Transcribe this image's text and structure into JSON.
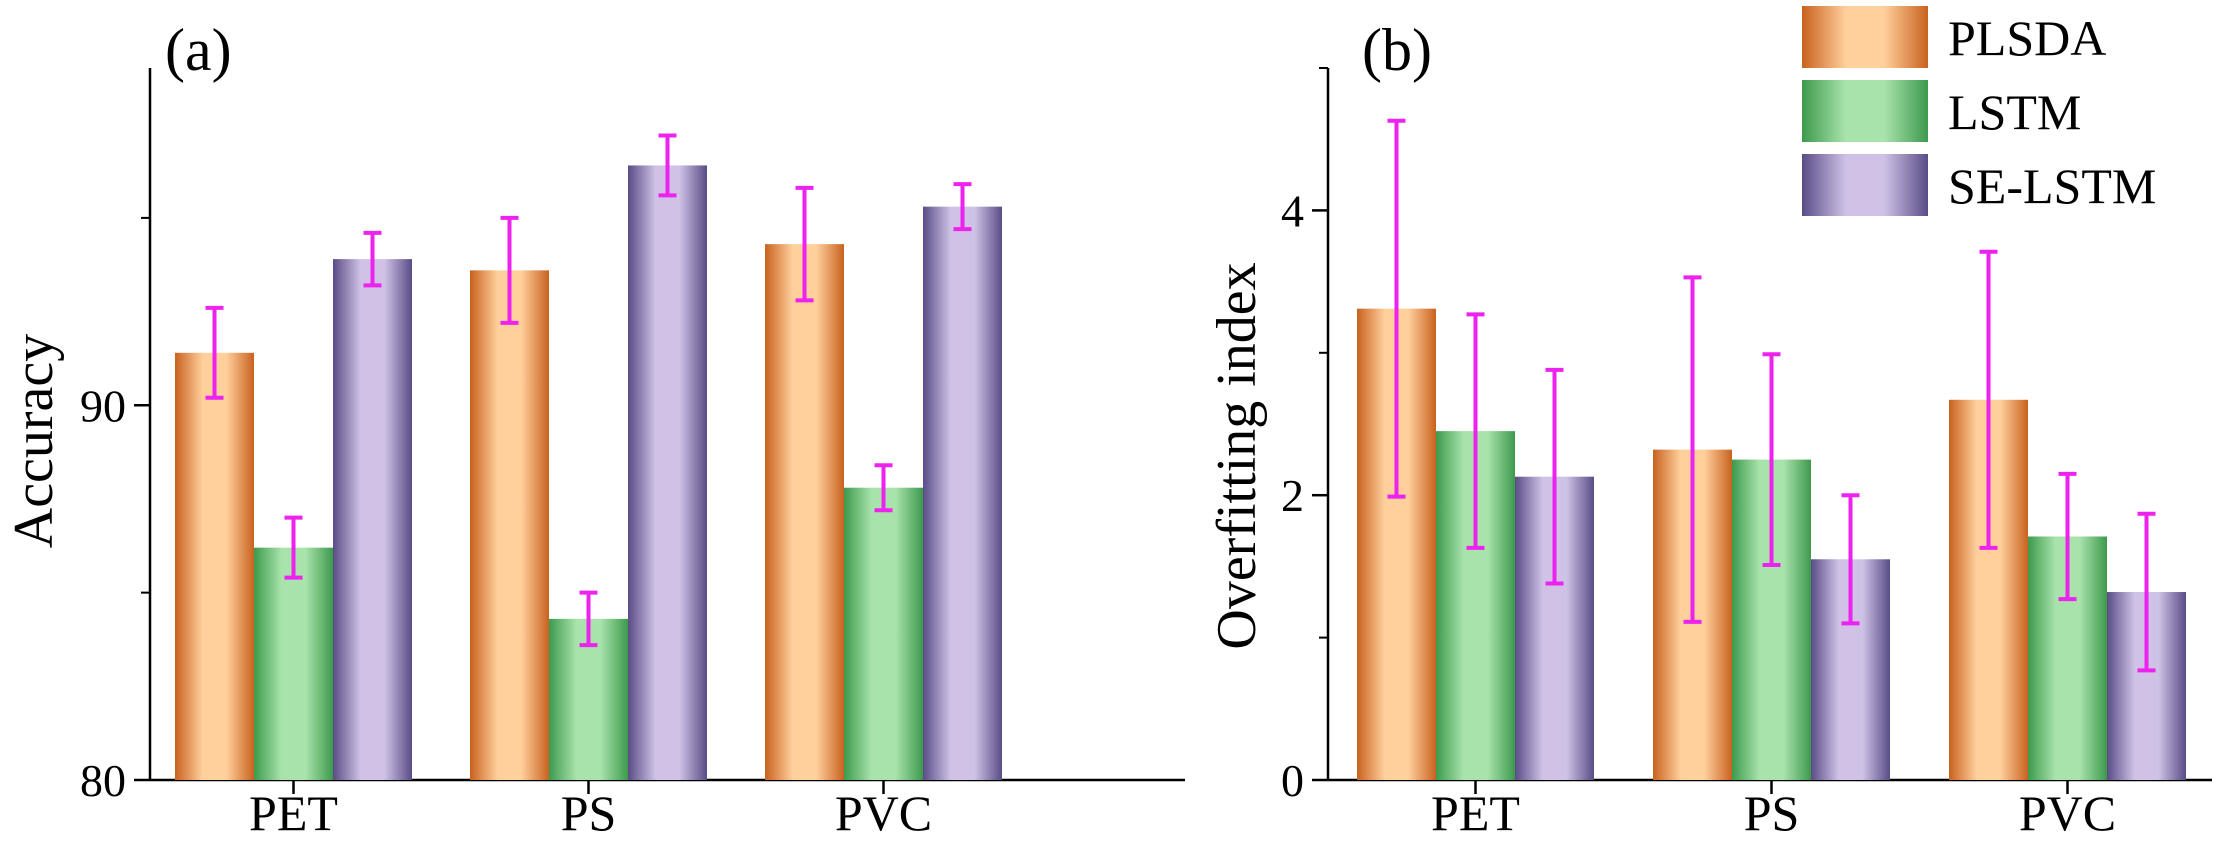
{
  "colors": {
    "PLSDA": [
      "#c8621f",
      "#ffcf9c"
    ],
    "LSTM": [
      "#3d9a4c",
      "#a9e3ac"
    ],
    "SE-LSTM": [
      "#5a4c86",
      "#cfc2e6"
    ],
    "error_bar": "#ee22ee",
    "axis": "#000000"
  },
  "legend": {
    "position": "top-right",
    "entries": [
      "PLSDA",
      "LSTM",
      "SE-LSTM"
    ]
  },
  "chart_data": [
    {
      "type": "bar",
      "panel_label": "(a)",
      "title": "",
      "xlabel": "",
      "ylabel": "Accuracy",
      "ylim": [
        80,
        99
      ],
      "yticks": [
        80,
        90
      ],
      "categories": [
        "PET",
        "PS",
        "PVC"
      ],
      "series": [
        {
          "name": "PLSDA",
          "values": [
            91.4,
            93.6,
            94.3
          ],
          "errors": [
            1.2,
            1.4,
            1.5
          ]
        },
        {
          "name": "LSTM",
          "values": [
            86.2,
            84.3,
            87.8
          ],
          "errors": [
            0.8,
            0.7,
            0.6
          ]
        },
        {
          "name": "SE-LSTM",
          "values": [
            93.9,
            96.4,
            95.3
          ],
          "errors": [
            0.7,
            0.8,
            0.6
          ]
        }
      ]
    },
    {
      "type": "bar",
      "panel_label": "(b)",
      "title": "",
      "xlabel": "",
      "ylabel": "Overfitting index",
      "ylim": [
        0,
        5
      ],
      "yticks": [
        0,
        2,
        4
      ],
      "categories": [
        "PET",
        "PS",
        "PVC"
      ],
      "series": [
        {
          "name": "PLSDA",
          "values": [
            3.31,
            2.32,
            2.67
          ],
          "errors": [
            1.32,
            1.21,
            1.04
          ]
        },
        {
          "name": "LSTM",
          "values": [
            2.45,
            2.25,
            1.71
          ],
          "errors": [
            0.82,
            0.74,
            0.44
          ]
        },
        {
          "name": "SE-LSTM",
          "values": [
            2.13,
            1.55,
            1.32
          ],
          "errors": [
            0.75,
            0.45,
            0.55
          ]
        }
      ]
    }
  ]
}
